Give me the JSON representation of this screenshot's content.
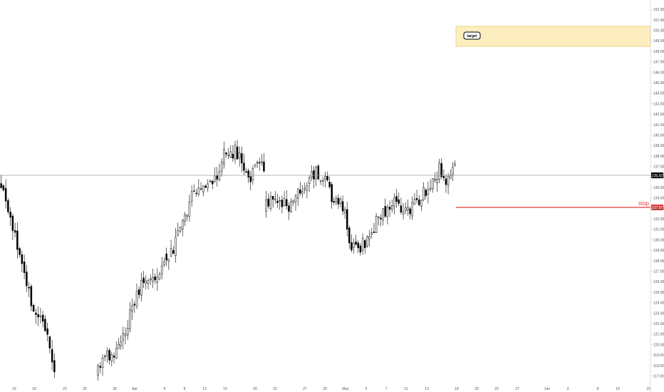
{
  "chart_data": {
    "type": "candlestick",
    "y_axis": {
      "range": [
        116.5,
        152.5
      ],
      "ticks": [
        117,
        118,
        119,
        120,
        121,
        122,
        123,
        124,
        125,
        126,
        127,
        128,
        129,
        130,
        131,
        132,
        133,
        134,
        135,
        136,
        137,
        138,
        139,
        140,
        141,
        142,
        143,
        144,
        145,
        146,
        147,
        148,
        149,
        150,
        151,
        152
      ],
      "tick_labels": [
        "117.00",
        "118.00",
        "119.00",
        "120.00",
        "121.00",
        "122.00",
        "123.00",
        "124.00",
        "125.00",
        "126.00",
        "127.00",
        "128.00",
        "129.00",
        "130.00",
        "131.00",
        "132.00",
        "133.00",
        "134.00",
        "135.00",
        "136.00",
        "137.00",
        "138.00",
        "139.00",
        "140.00",
        "141.00",
        "142.00",
        "143.00",
        "144.00",
        "145.00",
        "146.00",
        "147.00",
        "148.00",
        "149.00",
        "150.00",
        "151.00",
        "152.00"
      ]
    },
    "x_axis": {
      "tick_labels": [
        "16",
        "18",
        "23",
        "25",
        "30",
        "Apr",
        "6",
        "8",
        "13",
        "15",
        "20",
        "22",
        "27",
        "29",
        "May",
        "5",
        "7",
        "11",
        "13",
        "18",
        "20",
        "22",
        "27",
        "Jun",
        "3",
        "8",
        "10",
        "15"
      ]
    },
    "current_price": {
      "value": 135.93,
      "label": "135.93"
    },
    "stop": {
      "value": 132.95,
      "label": "132.95",
      "text": "stop"
    },
    "target_zone": {
      "low": 148.0,
      "high": 149.9,
      "label": "target"
    },
    "colors": {
      "up": "#ffffff",
      "down": "#000000",
      "outline": "#000000",
      "current_line": "#9e9e9e",
      "stop_line": "#e53935",
      "zone_fill": "#fdeec0",
      "zone_border": "#f2cc6b"
    },
    "segments": [
      {
        "start": 135.4,
        "end": 117.2,
        "start_date": "Mar 13",
        "end_date": "Mar 20"
      },
      {
        "start": 117.0,
        "end": 128.6,
        "start_date": "Mar 25",
        "end_date": "Apr 2"
      },
      {
        "start": 128.6,
        "end": 138.2,
        "start_date": "Apr 2",
        "end_date": "Apr 15"
      },
      {
        "start": 138.2,
        "end": 136.3,
        "start_date": "Apr 15",
        "end_date": "Apr 21"
      },
      {
        "start": 132.7,
        "end": 136.2,
        "start_date": "Apr 21",
        "end_date": "Apr 28"
      },
      {
        "start": 136.2,
        "end": 129.8,
        "start_date": "Apr 28",
        "end_date": "May 4"
      },
      {
        "start": 129.8,
        "end": 135.6,
        "start_date": "May 4",
        "end_date": "May 13"
      },
      {
        "start": 135.6,
        "end": 136.5,
        "start_date": "May 13",
        "end_date": "May 18"
      }
    ]
  }
}
